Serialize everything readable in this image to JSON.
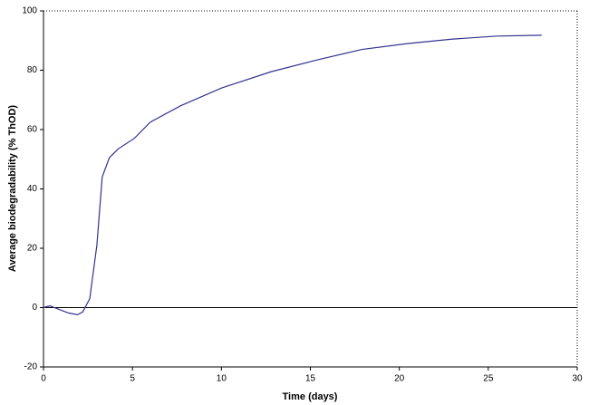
{
  "chart_data": {
    "type": "line",
    "x_label": "Time (days)",
    "y_label": "Average biodegradability (% ThOD)",
    "x": [
      0,
      0.36,
      0.87,
      1.4,
      1.9,
      2.2,
      2.6,
      3.0,
      3.3,
      3.7,
      4.2,
      5.1,
      6.0,
      7.7,
      10,
      12.8,
      15.4,
      17.9,
      20.5,
      23,
      25.5,
      28
    ],
    "series": [
      {
        "color": "#33338f",
        "values": [
          0,
          0.6,
          -0.6,
          -1.8,
          -2.4,
          -1.5,
          3,
          21,
          44,
          50.5,
          53.5,
          57,
          62.5,
          68,
          74,
          79.5,
          83.5,
          87,
          89,
          90.5,
          91.5,
          91.8
        ]
      }
    ],
    "xlim": [
      0,
      30
    ],
    "xticks": [
      0,
      5,
      10,
      15,
      20,
      25,
      30
    ],
    "ylim": [
      -20,
      100
    ],
    "yticks": [
      -20,
      0,
      20,
      40,
      60,
      80,
      100
    ],
    "zero_line": true
  }
}
